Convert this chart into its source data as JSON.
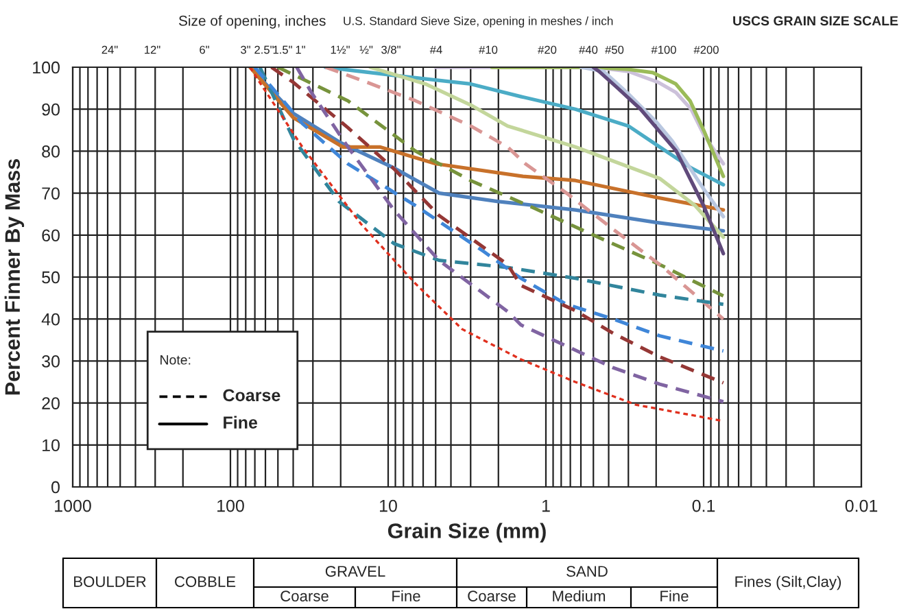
{
  "chart_data": {
    "type": "line",
    "xlabel": "Grain Size (mm)",
    "ylabel": "Percent Finner By Mass",
    "log": "x",
    "grid": true,
    "xlim": [
      1000,
      0.01
    ],
    "xticks": [
      1000,
      100,
      10,
      1,
      {
        "value": 0.1,
        "label": "0.1"
      },
      {
        "value": 0.01,
        "label": "0.01"
      }
    ],
    "ylim": [
      0,
      100
    ],
    "yticks": [
      0,
      10,
      20,
      30,
      40,
      50,
      60,
      70,
      80,
      90,
      100
    ],
    "annotations": [
      "24\"",
      "12\"",
      "6\"",
      "3\"",
      "2.5\"",
      "1.5\"",
      "1\"",
      "1½\"",
      "½\"",
      "3/8\"",
      "#4",
      "#10",
      "#20",
      "#40",
      "#50",
      "#100",
      "#200",
      "Size of opening, inches",
      "U.S. Standard Sieve Size, opening in meshes / inch",
      "USCS GRAIN SIZE SCALE",
      "Note:",
      "Coarse",
      "Fine",
      "BOULDER",
      "COBBLE",
      "GRAVEL",
      "Coarse",
      "Fine",
      "SAND",
      "Coarse",
      "Medium",
      "Fine",
      "Fines (Silt,Clay)"
    ],
    "series": [
      {
        "color": "#4f81bd",
        "line_style": "solid",
        "x": [
          75,
          40,
          20,
          9.2,
          4.75,
          2,
          0.65,
          0.2,
          0.075
        ],
        "values": [
          100,
          89,
          82,
          76,
          70,
          68,
          66,
          63,
          61
        ]
      },
      {
        "color": "#c8712a",
        "line_style": "solid",
        "x": [
          75,
          40,
          19.4,
          11.3,
          5,
          1.4,
          0.65,
          0.2,
          0.075
        ],
        "values": [
          100,
          88,
          81,
          81,
          77,
          74,
          73,
          69,
          66
        ]
      },
      {
        "color": "#4bacc6",
        "line_style": "solid",
        "x": [
          25,
          9,
          3,
          1.44,
          0.65,
          0.3,
          0.19,
          0.12,
          0.075
        ],
        "values": [
          100,
          98,
          96,
          93,
          90,
          86,
          81,
          76,
          72
        ]
      },
      {
        "color": "#c3d69b",
        "line_style": "solid",
        "x": [
          13,
          5.8,
          3,
          1.75,
          0.65,
          0.19,
          0.113,
          0.075
        ],
        "values": [
          100,
          96,
          91,
          86,
          81,
          73.5,
          67,
          59.5
        ]
      },
      {
        "color": "#ccc1da",
        "line_style": "solid",
        "x": [
          5,
          0.5,
          0.3,
          0.194,
          0.15,
          0.12,
          0.1,
          0.075
        ],
        "values": [
          100,
          100,
          99,
          96.4,
          94,
          90,
          84,
          77
        ]
      },
      {
        "color": "#9bbb59",
        "line_style": "solid",
        "x": [
          2.2,
          0.5,
          0.3,
          0.21,
          0.15,
          0.122,
          0.1,
          0.075
        ],
        "values": [
          100,
          100,
          99.5,
          98.7,
          96,
          92,
          85,
          74
        ]
      },
      {
        "color": "#b9c7e0",
        "line_style": "solid",
        "x": [
          0.6,
          0.43,
          0.307,
          0.2,
          0.158,
          0.1,
          0.075
        ],
        "values": [
          100,
          99,
          94,
          87,
          82.4,
          71,
          64.4
        ]
      },
      {
        "color": "#604a7b",
        "line_style": "solid",
        "x": [
          0.5,
          0.46,
          0.35,
          0.251,
          0.149,
          0.1,
          0.075
        ],
        "values": [
          100,
          99,
          95,
          90,
          80,
          67,
          55.6
        ]
      },
      {
        "color": "#77933c",
        "line_style": "dashed",
        "x": [
          50,
          30,
          18,
          6.7,
          3,
          1.2,
          0.5,
          0.19,
          0.075
        ],
        "values": [
          100,
          96,
          92,
          80,
          73,
          66.5,
          60,
          53,
          45.5
        ]
      },
      {
        "color": "#d99694",
        "line_style": "dashed",
        "x": [
          25,
          15,
          6.7,
          3,
          1.75,
          1.35,
          0.74,
          0.375,
          0.19,
          0.075
        ],
        "values": [
          100,
          97,
          92,
          86,
          81,
          77,
          70,
          61.4,
          53,
          40
        ]
      },
      {
        "color": "#31859c",
        "line_style": "dashed",
        "x": [
          65,
          40,
          20.5,
          9.2,
          4.77,
          1.75,
          0.65,
          0.19,
          0.075
        ],
        "values": [
          100,
          83,
          68,
          58,
          54,
          52.3,
          49.7,
          45.7,
          43.5
        ]
      },
      {
        "color": "#3f86d8",
        "line_style": "dashed",
        "x": [
          70,
          35,
          18,
          6.7,
          2.46,
          1.44,
          0.74,
          0.375,
          0.19,
          0.075
        ],
        "values": [
          100,
          86.6,
          77,
          67,
          56,
          49.7,
          43.5,
          40,
          36,
          32.4
        ]
      },
      {
        "color": "#953735",
        "line_style": "dashed",
        "x": [
          55,
          40,
          18,
          9.2,
          4.77,
          1.75,
          1.44,
          0.65,
          0.375,
          0.19,
          0.075
        ],
        "values": [
          100,
          96.4,
          85.6,
          75.8,
          64.7,
          53,
          48,
          42,
          36.6,
          31,
          24.8
        ]
      },
      {
        "color": "#8064a2",
        "line_style": "dashed",
        "x": [
          38,
          30.7,
          18,
          9.2,
          4.77,
          1.75,
          1.44,
          0.375,
          0.19,
          0.075
        ],
        "values": [
          100,
          94,
          81,
          66,
          54,
          41.8,
          38.6,
          28.4,
          24.5,
          20.3
        ]
      },
      {
        "color": "#e0301e",
        "line_style": "dotted",
        "x": [
          75,
          68,
          35,
          14.9,
          6.7,
          3.4,
          1.44,
          0.65,
          0.27,
          0.075
        ],
        "values": [
          100,
          97.4,
          81,
          62.7,
          48.4,
          37.6,
          30.4,
          25,
          19.6,
          15.7
        ]
      }
    ]
  }
}
